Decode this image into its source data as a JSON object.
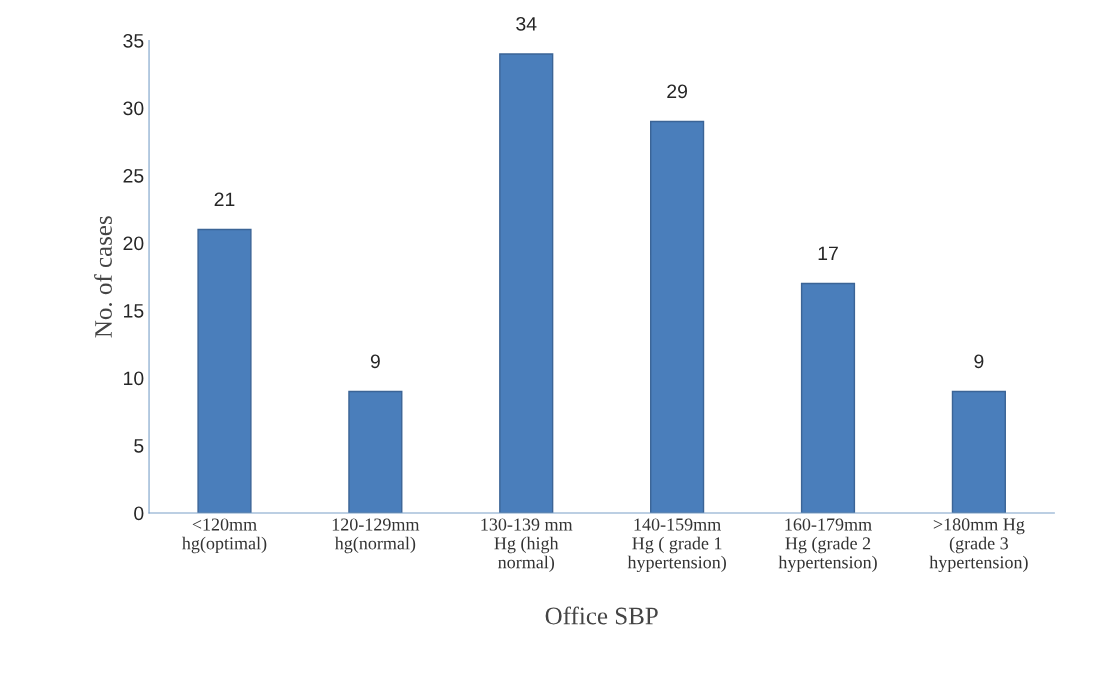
{
  "chart_data": {
    "type": "bar",
    "categories": [
      "<120mm\nhg(optimal)",
      "120-129mm\nhg(normal)",
      "130-139 mm\nHg (high\nnormal)",
      "140-159mm\nHg ( grade 1\nhypertension)",
      "160-179mm\nHg (grade 2\nhypertension)",
      ">180mm Hg\n(grade 3\nhypertension)"
    ],
    "values": [
      21,
      9,
      34,
      29,
      17,
      9
    ],
    "color": "#4a7ebb",
    "xlabel": "Office SBP",
    "ylabel": "No. of cases",
    "ylim": [
      0,
      35
    ],
    "yticks": [
      0,
      5,
      10,
      15,
      20,
      25,
      30,
      35
    ],
    "data_labels": true,
    "grid": false
  }
}
